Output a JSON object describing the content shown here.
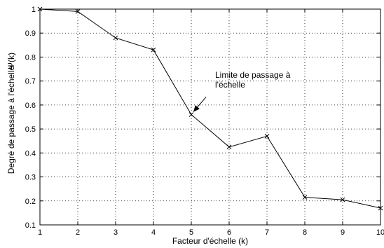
{
  "chart_data": {
    "type": "line",
    "xlabel": "Facteur d'échelle (k)",
    "ylabel_outer": "Degré de passage à l'échelle",
    "ylabel_inner": "Ψ(k)",
    "xlim": [
      1,
      10
    ],
    "ylim": [
      0.1,
      1
    ],
    "xticks": [
      1,
      2,
      3,
      4,
      5,
      6,
      7,
      8,
      9,
      10
    ],
    "yticks": [
      0.1,
      0.2,
      0.3,
      0.4,
      0.5,
      0.6,
      0.7,
      0.8,
      0.9,
      1
    ],
    "grid": true,
    "marker": "x",
    "series": [
      {
        "x": [
          1,
          2,
          3,
          4,
          5,
          6,
          7,
          8,
          9,
          10
        ],
        "y": [
          1.0,
          0.99,
          0.88,
          0.83,
          0.56,
          0.425,
          0.47,
          0.215,
          0.205,
          0.17
        ]
      }
    ],
    "annotation": {
      "lines": [
        "Limite de passage à",
        "l'échelle"
      ],
      "x": 5,
      "y": 0.56
    }
  }
}
